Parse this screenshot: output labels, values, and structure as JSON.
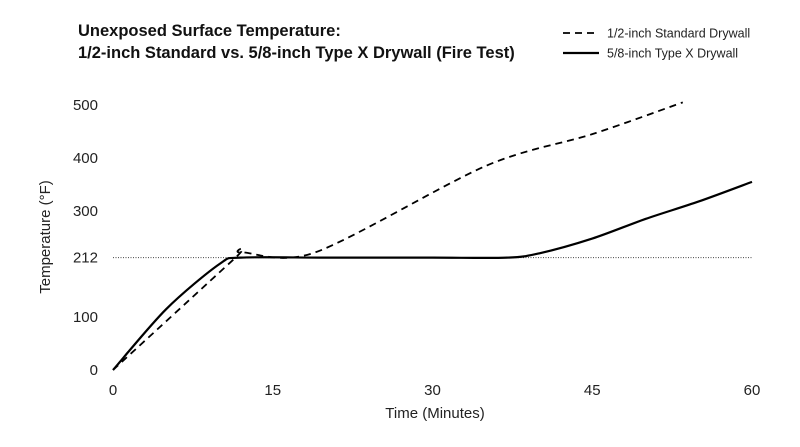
{
  "chart_data": {
    "type": "line",
    "title": "Unexposed Surface Temperature:",
    "subtitle": "1/2-inch Standard vs. 5/8-inch Type X Drywall (Fire Test)",
    "xlabel": "Time (Minutes)",
    "ylabel": "Temperature (°F)",
    "xlim": [
      0,
      60
    ],
    "ylim": [
      0,
      500
    ],
    "xticks": [
      0,
      15,
      30,
      45,
      60
    ],
    "yticks": [
      0,
      100,
      212,
      300,
      400,
      500
    ],
    "grid": false,
    "legend_position": "top-right",
    "reference_line": {
      "y": 212,
      "style": "dotted"
    },
    "series": [
      {
        "name": "1/2-inch Standard Drywall",
        "style": "dashed",
        "color": "#000000",
        "x": [
          0,
          11.5,
          12,
          19,
          35,
          45,
          53.5
        ],
        "y": [
          0,
          212,
          222,
          222,
          385,
          445,
          505
        ]
      },
      {
        "name": "5/8-inch Type X Drywall",
        "style": "solid",
        "color": "#000000",
        "x": [
          0,
          5,
          10,
          12,
          20,
          30,
          37,
          40,
          45,
          50,
          55,
          60
        ],
        "y": [
          0,
          115,
          200,
          212,
          212,
          212,
          212,
          220,
          248,
          285,
          318,
          355
        ]
      }
    ]
  }
}
